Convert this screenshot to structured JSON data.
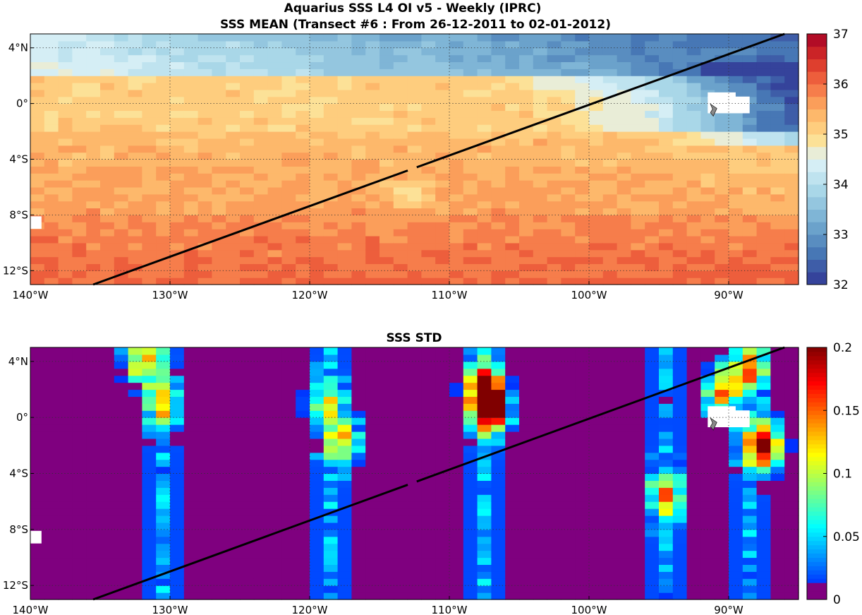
{
  "figure": {
    "title_line1": "Aquarius SSS L4 OI v5 - Weekly (IPRC)",
    "title_line2": "SSS MEAN (Transect #6 : From 26-12-2011 to 02-01-2012)"
  },
  "chart_data": [
    {
      "type": "heatmap",
      "title": "",
      "variable": "SSS MEAN",
      "x_range_lon": [
        -140,
        -85
      ],
      "y_range_lat": [
        -13,
        5
      ],
      "x_ticks": [
        {
          "value": -140,
          "label": "140°W"
        },
        {
          "value": -130,
          "label": "130°W"
        },
        {
          "value": -120,
          "label": "120°W"
        },
        {
          "value": -110,
          "label": "110°W"
        },
        {
          "value": -100,
          "label": "100°W"
        },
        {
          "value": -90,
          "label": "90°W"
        }
      ],
      "y_ticks": [
        {
          "value": 4,
          "label": "4°N"
        },
        {
          "value": 0,
          "label": "0°"
        },
        {
          "value": -4,
          "label": "4°S"
        },
        {
          "value": -8,
          "label": "8°S"
        },
        {
          "value": -12,
          "label": "12°S"
        }
      ],
      "grid": true,
      "grid_style": "dotted",
      "colorbar": {
        "range": [
          32,
          37
        ],
        "ticks": [
          {
            "value": 32,
            "label": "32"
          },
          {
            "value": 33,
            "label": "33"
          },
          {
            "value": 34,
            "label": "34"
          },
          {
            "value": 35,
            "label": "35"
          },
          {
            "value": 36,
            "label": "36"
          },
          {
            "value": 37,
            "label": "37"
          }
        ],
        "colormap": "RdYlBu_r discrete (20 levels)"
      },
      "field_description": {
        "lat_bands": [
          {
            "lat_range": [
              2,
              5
            ],
            "sss_approx": [
              33.3,
              34.8
            ],
            "note": "fresher toward east (~32.5 at 86W)"
          },
          {
            "lat_range": [
              -2,
              2
            ],
            "sss_approx": [
              34.0,
              35.3
            ],
            "note": "fresh tongue east of 105W"
          },
          {
            "lat_range": [
              -8,
              -2
            ],
            "sss_approx": [
              34.8,
              35.5
            ],
            "note": "local minimum ~34 near 113W,7S"
          },
          {
            "lat_range": [
              -13,
              -8
            ],
            "sss_approx": [
              35.5,
              36.2
            ]
          }
        ]
      },
      "transect": {
        "start": {
          "lon": -135.5,
          "lat": -13
        },
        "end": {
          "lon": -86,
          "lat": 5
        },
        "color": "#000000"
      },
      "missing_data_color": "#ffffff",
      "land_marker": {
        "lon": -91,
        "lat": -0.5,
        "name": "Galapagos",
        "color": "#8a8a8a"
      }
    },
    {
      "type": "heatmap",
      "title": "SSS STD",
      "variable": "SSS STD",
      "x_range_lon": [
        -140,
        -85
      ],
      "y_range_lat": [
        -13,
        5
      ],
      "x_ticks": [
        {
          "value": -140,
          "label": "140°W"
        },
        {
          "value": -130,
          "label": "130°W"
        },
        {
          "value": -120,
          "label": "120°W"
        },
        {
          "value": -110,
          "label": "110°W"
        },
        {
          "value": -100,
          "label": "100°W"
        },
        {
          "value": -90,
          "label": "90°W"
        }
      ],
      "y_ticks": [
        {
          "value": 4,
          "label": "4°N"
        },
        {
          "value": 0,
          "label": "0°"
        },
        {
          "value": -4,
          "label": "4°S"
        },
        {
          "value": -8,
          "label": "8°S"
        },
        {
          "value": -12,
          "label": "12°S"
        }
      ],
      "grid": true,
      "grid_style": "dotted",
      "colorbar": {
        "range": [
          0,
          0.2
        ],
        "ticks": [
          {
            "value": 0,
            "label": "0"
          },
          {
            "value": 0.05,
            "label": "0.05"
          },
          {
            "value": 0.1,
            "label": "0.1"
          },
          {
            "value": 0.15,
            "label": "0.15"
          },
          {
            "value": 0.2,
            "label": "0.2"
          }
        ],
        "colormap": "jet"
      },
      "background_value": 0,
      "hotspots": [
        {
          "lon": -132,
          "lat": 4.0,
          "std": 0.12
        },
        {
          "lon": -130.5,
          "lat": 1.0,
          "std": 0.1
        },
        {
          "lon": -119,
          "lat": 1.0,
          "std": 0.08
        },
        {
          "lon": -117.5,
          "lat": -1.5,
          "std": 0.1
        },
        {
          "lon": -107.5,
          "lat": 2.0,
          "std": 0.2
        },
        {
          "lon": -107,
          "lat": 0.5,
          "std": 0.18
        },
        {
          "lon": -94.5,
          "lat": -5.5,
          "std": 0.1
        },
        {
          "lon": -87.5,
          "lat": -2.0,
          "std": 0.2
        },
        {
          "lon": -88.5,
          "lat": 3.5,
          "std": 0.12
        },
        {
          "lon": -90.5,
          "lat": 2.0,
          "std": 0.14
        }
      ],
      "transect": {
        "start": {
          "lon": -135.5,
          "lat": -13
        },
        "end": {
          "lon": -86,
          "lat": 5
        },
        "color": "#000000"
      },
      "missing_data_color": "#ffffff",
      "land_marker": {
        "lon": -91,
        "lat": -0.5,
        "name": "Galapagos",
        "color": "#8a8a8a"
      }
    }
  ]
}
